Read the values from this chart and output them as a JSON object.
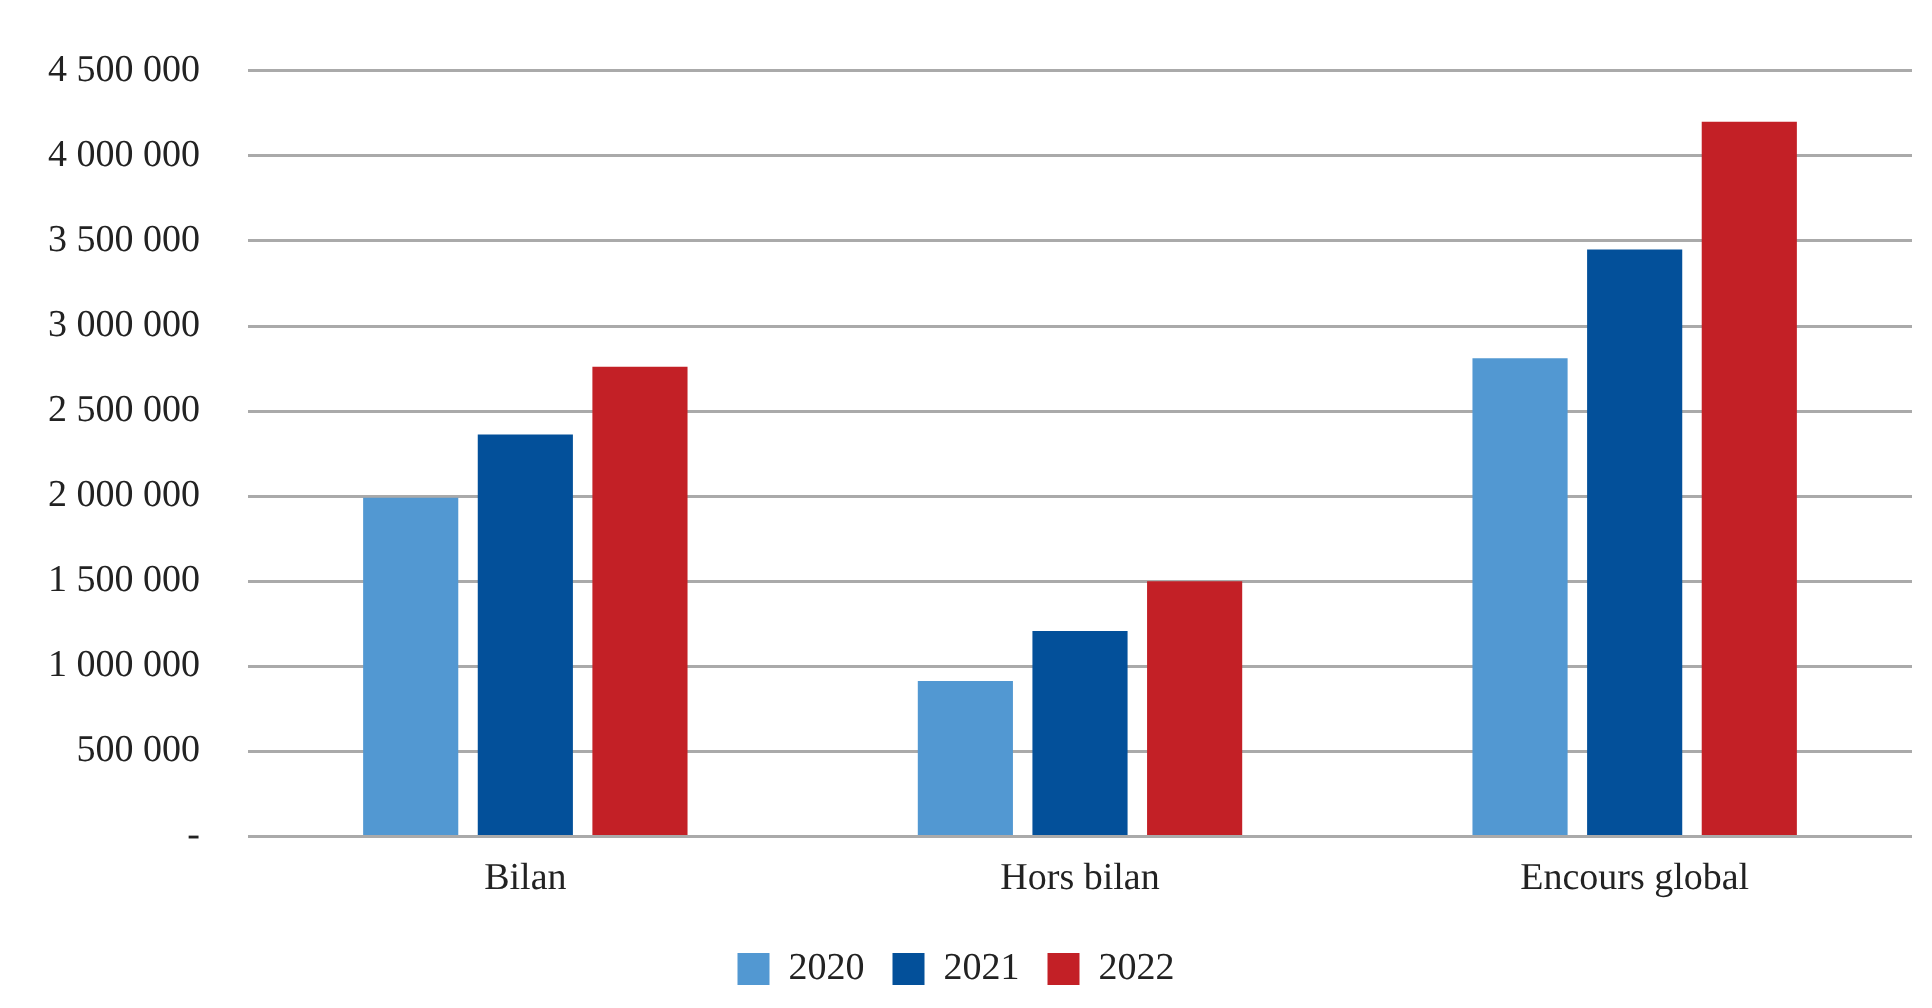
{
  "chart_data": {
    "type": "bar",
    "categories": [
      "Bilan",
      "Hors bilan",
      "Encours global"
    ],
    "series": [
      {
        "name": "2020",
        "color": "#5298d2",
        "values": [
          1990000,
          914000,
          2810000
        ]
      },
      {
        "name": "2021",
        "color": "#03509a",
        "values": [
          2363000,
          1207000,
          3450000
        ]
      },
      {
        "name": "2022",
        "color": "#c32026",
        "values": [
          2760000,
          1500000,
          4200000
        ]
      }
    ],
    "ylim": [
      0,
      4500000
    ],
    "yticks": [
      {
        "value": 0,
        "label": "-"
      },
      {
        "value": 500000,
        "label": "500 000"
      },
      {
        "value": 1000000,
        "label": "1 000 000"
      },
      {
        "value": 1500000,
        "label": "1 500 000"
      },
      {
        "value": 2000000,
        "label": "2 000 000"
      },
      {
        "value": 2500000,
        "label": "2 500 000"
      },
      {
        "value": 3000000,
        "label": "3 000 000"
      },
      {
        "value": 3500000,
        "label": "3 500 000"
      },
      {
        "value": 4000000,
        "label": "4 000 000"
      },
      {
        "value": 4500000,
        "label": "4 500 000"
      }
    ],
    "grid": "y",
    "legend": "bottom"
  }
}
